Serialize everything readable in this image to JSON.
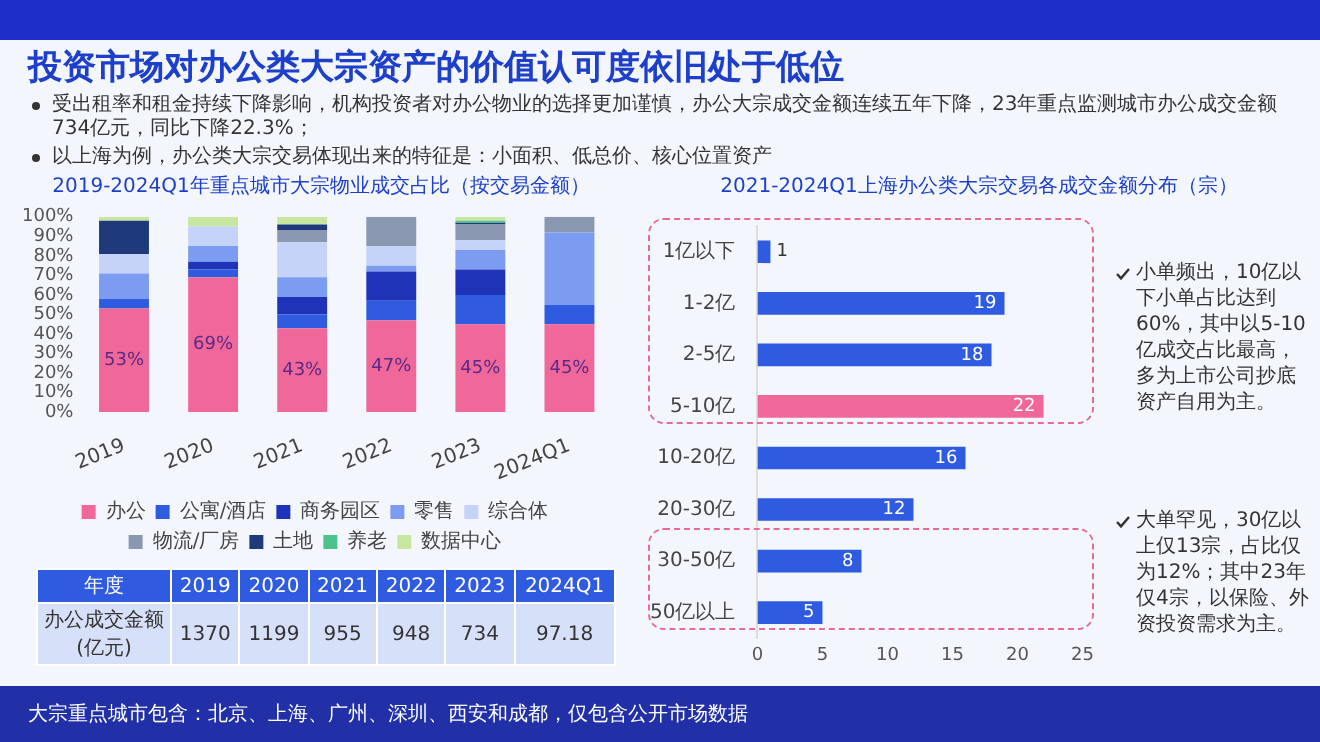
{
  "chart_data": [
    {
      "type": "other",
      "title": "投资市场对办公类大宗资产的价值认可度依旧处于低位",
      "annotations": [
        "受出租率和租金持续下降影响，机构投资者对办公物业的选择更加谨慎，办公大宗成交金额连续五年下降，23年重点监测城市办公成交金额734亿元，同比下降22.3%；",
        "以上海为例，办公类大宗交易体现出来的特征是：小面积、低总价、核心位置资产"
      ]
    },
    {
      "type": "bar",
      "title": "2019-2024Q1年重点城市大宗物业成交占比（按交易金额）",
      "stacked": true,
      "legend": "bottom",
      "categories": [
        "2019",
        "2020",
        "2021",
        "2022",
        "2023",
        "2024Q1"
      ],
      "ylim": [
        0,
        100
      ],
      "yticks": [
        {
          "value": 0,
          "label": "0%"
        },
        {
          "value": 10,
          "label": "10%"
        },
        {
          "value": 20,
          "label": "20%"
        },
        {
          "value": 30,
          "label": "30%"
        },
        {
          "value": 40,
          "label": "40%"
        },
        {
          "value": 50,
          "label": "50%"
        },
        {
          "value": 60,
          "label": "60%"
        },
        {
          "value": 70,
          "label": "70%"
        },
        {
          "value": 80,
          "label": "80%"
        },
        {
          "value": 90,
          "label": "90%"
        },
        {
          "value": 100,
          "label": "100%"
        }
      ],
      "series": [
        {
          "name": "办公",
          "color": "#f0679a",
          "values": [
            53,
            69,
            43,
            47,
            45,
            45
          ],
          "value_labels": [
            "53%",
            "69%",
            "43%",
            "47%",
            "45%",
            "45%"
          ]
        },
        {
          "name": "公寓/酒店",
          "color": "#2f5be0",
          "values": [
            5,
            4,
            7,
            10,
            15,
            10
          ]
        },
        {
          "name": "商务园区",
          "color": "#1e33b8",
          "values": [
            0,
            4,
            9,
            15,
            13,
            0
          ]
        },
        {
          "name": "零售",
          "color": "#7b9cf0",
          "values": [
            13,
            8,
            10,
            3,
            10,
            37
          ]
        },
        {
          "name": "综合体",
          "color": "#c5d3f8",
          "values": [
            10,
            10,
            18,
            10,
            5,
            0
          ]
        },
        {
          "name": "物流/厂房",
          "color": "#8a97b0",
          "values": [
            0,
            0,
            6,
            15,
            8,
            8
          ]
        },
        {
          "name": "土地",
          "color": "#1f3a7a",
          "values": [
            17,
            0,
            3,
            0,
            1,
            0
          ]
        },
        {
          "name": "养老",
          "color": "#4cc38a",
          "values": [
            0,
            0,
            0,
            0,
            1,
            0
          ]
        },
        {
          "name": "数据中心",
          "color": "#c8e6a0",
          "values": [
            2,
            5,
            4,
            0,
            2,
            0
          ]
        }
      ]
    },
    {
      "type": "heatmap",
      "xlabel": "年度",
      "categories": [
        "2019",
        "2020",
        "2021",
        "2022",
        "2023",
        "2024Q1"
      ],
      "y_categories": [
        "办公成交金额(亿元)"
      ],
      "cells": [
        [
          1370,
          1199,
          955,
          948,
          734,
          97.18
        ]
      ],
      "data_labels": true
    },
    {
      "type": "bar",
      "orientation": "horizontal",
      "title": "2021-2024Q1上海办公类大宗交易各成交金额分布（宗）",
      "categories": [
        "1亿以下",
        "1-2亿",
        "2-5亿",
        "5-10亿",
        "10-20亿",
        "20-30亿",
        "30-50亿",
        "50亿以上"
      ],
      "values": [
        1,
        19,
        18,
        22,
        16,
        12,
        8,
        5
      ],
      "colors": [
        "#2f5be0",
        "#2f5be0",
        "#2f5be0",
        "#f0679a",
        "#2f5be0",
        "#2f5be0",
        "#2f5be0",
        "#2f5be0"
      ],
      "xlim": [
        0,
        25
      ],
      "xticks": [
        0,
        5,
        10,
        15,
        20,
        25
      ],
      "data_labels": true,
      "annotations": [
        "小单频出，10亿以下小单占比达到60%，其中以5-10亿成交占比最高，多为上市公司抄底资产自用为主。",
        "大单罕见，30亿以上仅13宗，占比仅为12%；其中23年仅4宗，以保险、外资投资需求为主。"
      ]
    },
    {
      "type": "other",
      "annotations": [
        "大宗重点城市包含：北京、上海、广州、深圳、西安和成都，仅包含公开市场数据"
      ]
    }
  ]
}
